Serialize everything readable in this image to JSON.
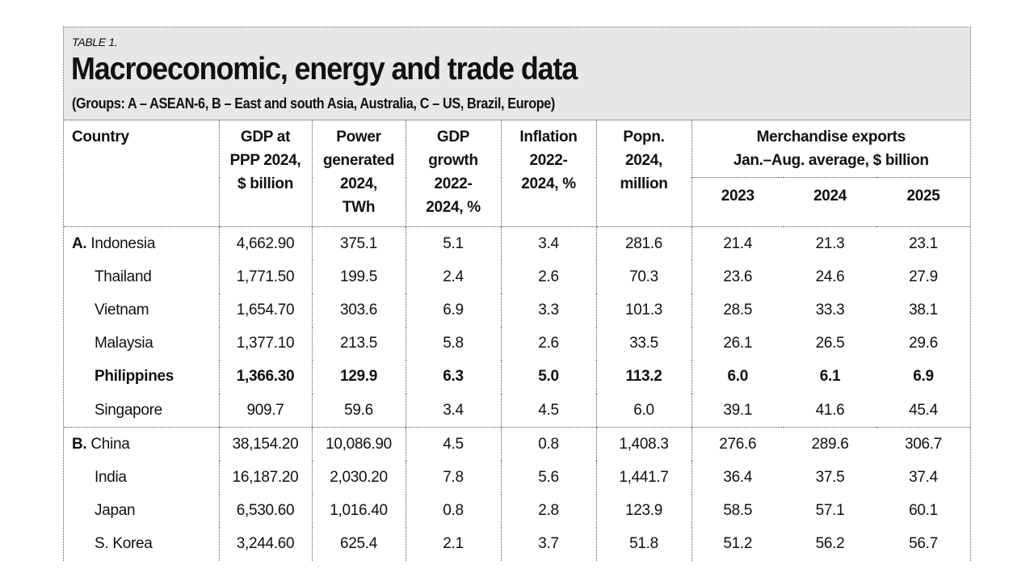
{
  "header": {
    "table_label": "TABLE 1.",
    "title": "Macroeconomic, energy and trade data",
    "subtitle": "(Groups: A – ASEAN-6, B – East and south Asia, Australia, C – US, Brazil, Europe)"
  },
  "columns": {
    "country": "Country",
    "gdp_ppp": [
      "GDP at",
      "PPP 2024,",
      "$ billion"
    ],
    "power": [
      "Power",
      "generated",
      "2024,",
      "TWh"
    ],
    "gdp_growth": [
      "GDP",
      "growth",
      "2022-",
      "2024, %"
    ],
    "inflation": [
      "Inflation",
      "2022-",
      "2024, %"
    ],
    "population": [
      "Popn.",
      "2024,",
      "million"
    ],
    "exports_group": [
      "Merchandise exports",
      "Jan.–Aug. average, $ billion"
    ],
    "export_years": [
      "2023",
      "2024",
      "2025"
    ]
  },
  "rows": [
    {
      "group": "A.",
      "country": "Indonesia",
      "gdp_ppp": "4,662.90",
      "power": "375.1",
      "gdp_growth": "5.1",
      "inflation": "3.4",
      "population": "281.6",
      "exp_2023": "21.4",
      "exp_2024": "21.3",
      "exp_2025": "23.1",
      "bold": false
    },
    {
      "group": "",
      "country": "Thailand",
      "gdp_ppp": "1,771.50",
      "power": "199.5",
      "gdp_growth": "2.4",
      "inflation": "2.6",
      "population": "70.3",
      "exp_2023": "23.6",
      "exp_2024": "24.6",
      "exp_2025": "27.9",
      "bold": false
    },
    {
      "group": "",
      "country": "Vietnam",
      "gdp_ppp": "1,654.70",
      "power": "303.6",
      "gdp_growth": "6.9",
      "inflation": "3.3",
      "population": "101.3",
      "exp_2023": "28.5",
      "exp_2024": "33.3",
      "exp_2025": "38.1",
      "bold": false
    },
    {
      "group": "",
      "country": "Malaysia",
      "gdp_ppp": "1,377.10",
      "power": "213.5",
      "gdp_growth": "5.8",
      "inflation": "2.6",
      "population": "33.5",
      "exp_2023": "26.1",
      "exp_2024": "26.5",
      "exp_2025": "29.6",
      "bold": false
    },
    {
      "group": "",
      "country": "Philippines",
      "gdp_ppp": "1,366.30",
      "power": "129.9",
      "gdp_growth": "6.3",
      "inflation": "5.0",
      "population": "113.2",
      "exp_2023": "6.0",
      "exp_2024": "6.1",
      "exp_2025": "6.9",
      "bold": true
    },
    {
      "group": "",
      "country": "Singapore",
      "gdp_ppp": "909.7",
      "power": "59.6",
      "gdp_growth": "3.4",
      "inflation": "4.5",
      "population": "6.0",
      "exp_2023": "39.1",
      "exp_2024": "41.6",
      "exp_2025": "45.4",
      "bold": false
    },
    {
      "group": "B.",
      "country": "China",
      "gdp_ppp": "38,154.20",
      "power": "10,086.90",
      "gdp_growth": "4.5",
      "inflation": "0.8",
      "population": "1,408.3",
      "exp_2023": "276.6",
      "exp_2024": "289.6",
      "exp_2025": "306.7",
      "bold": false
    },
    {
      "group": "",
      "country": "India",
      "gdp_ppp": "16,187.20",
      "power": "2,030.20",
      "gdp_growth": "7.8",
      "inflation": "5.6",
      "population": "1,441.7",
      "exp_2023": "36.4",
      "exp_2024": "37.5",
      "exp_2025": "37.4",
      "bold": false
    },
    {
      "group": "",
      "country": "Japan",
      "gdp_ppp": "6,530.60",
      "power": "1,016.40",
      "gdp_growth": "0.8",
      "inflation": "2.8",
      "population": "123.9",
      "exp_2023": "58.5",
      "exp_2024": "57.1",
      "exp_2025": "60.1",
      "bold": false
    },
    {
      "group": "",
      "country": "S. Korea",
      "gdp_ppp": "3,244.60",
      "power": "625.4",
      "gdp_growth": "2.1",
      "inflation": "3.7",
      "population": "51.8",
      "exp_2023": "51.2",
      "exp_2024": "56.2",
      "exp_2025": "56.7",
      "bold": false
    }
  ]
}
